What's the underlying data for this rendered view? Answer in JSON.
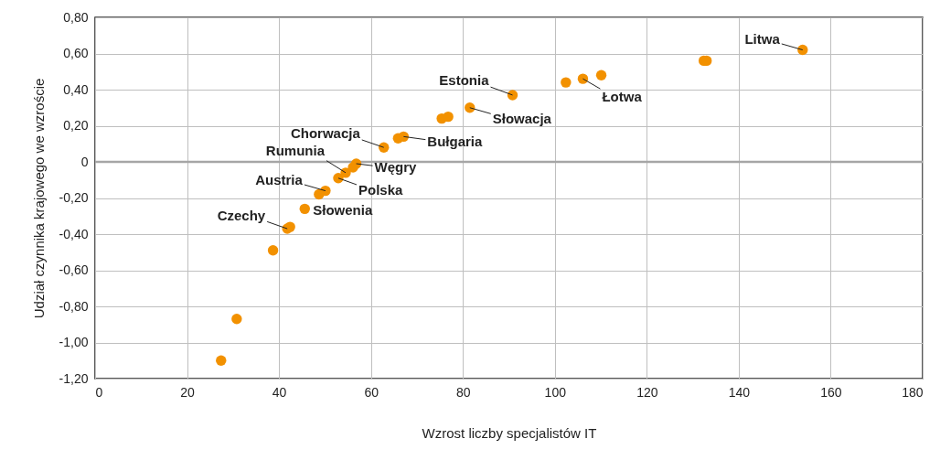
{
  "chart_data": {
    "type": "scatter",
    "xlabel": "Wzrost liczby specjalistów IT",
    "ylabel": "Udział czynnika krajowego we wzroście",
    "x": [
      27.4,
      30.8,
      38.7,
      41.8,
      42.4,
      45.6,
      48.7,
      50.1,
      52.9,
      54.5,
      56.1,
      56.8,
      62.8,
      65.9,
      67.1,
      75.4,
      76.8,
      81.5,
      90.8,
      102.4,
      106.1,
      110.1,
      132.4,
      133.0,
      153.9
    ],
    "series": [
      {
        "color": "#f29100",
        "values": [
          -1.1,
          -0.87,
          -0.49,
          -0.37,
          -0.36,
          -0.26,
          -0.18,
          -0.16,
          -0.09,
          -0.06,
          -0.03,
          -0.01,
          0.08,
          0.13,
          0.14,
          0.24,
          0.25,
          0.3,
          0.37,
          0.44,
          0.46,
          0.48,
          0.56,
          0.56,
          0.62
        ]
      }
    ],
    "xlim": [
      0,
      180
    ],
    "xticks": [
      0,
      20,
      40,
      60,
      80,
      100,
      120,
      140,
      160,
      180
    ],
    "ylim": [
      -1.2,
      0.8
    ],
    "yticks": [
      {
        "value": -1.2,
        "label": "-1,20"
      },
      {
        "value": -1.0,
        "label": "-1,00"
      },
      {
        "value": -0.8,
        "label": "-0,80"
      },
      {
        "value": -0.6,
        "label": "-0,60"
      },
      {
        "value": -0.4,
        "label": "-0,40"
      },
      {
        "value": -0.2,
        "label": "-0,20"
      },
      0,
      {
        "value": 0.2,
        "label": "0,20"
      },
      {
        "value": 0.4,
        "label": "0,40"
      },
      {
        "value": 0.6,
        "label": "0,60"
      },
      {
        "value": 0.8,
        "label": "0,80"
      }
    ],
    "ref_lines": [
      {
        "axis": "y",
        "value": 0,
        "color": "#a6a6a6"
      }
    ],
    "grid": true,
    "marker": "circle",
    "annotations": [
      {
        "text": "Litwa",
        "x": 153.9,
        "y": 0.62
      },
      {
        "text": "Łotwa",
        "x": 106.1,
        "y": 0.46
      },
      {
        "text": "Estonia",
        "x": 90.8,
        "y": 0.37
      },
      {
        "text": "Słowacja",
        "x": 81.5,
        "y": 0.3
      },
      {
        "text": "Bułgaria",
        "x": 67.1,
        "y": 0.14
      },
      {
        "text": "Chorwacja",
        "x": 62.8,
        "y": 0.08
      },
      {
        "text": "Rumunia",
        "x": 54.5,
        "y": -0.06
      },
      {
        "text": "Węgry",
        "x": 56.8,
        "y": -0.01
      },
      {
        "text": "Austria",
        "x": 50.1,
        "y": -0.16
      },
      {
        "text": "Polska",
        "x": 52.9,
        "y": -0.09
      },
      {
        "text": "Słowenia",
        "x": 45.6,
        "y": -0.26
      },
      {
        "text": "Czechy",
        "x": 41.8,
        "y": -0.37
      }
    ]
  }
}
